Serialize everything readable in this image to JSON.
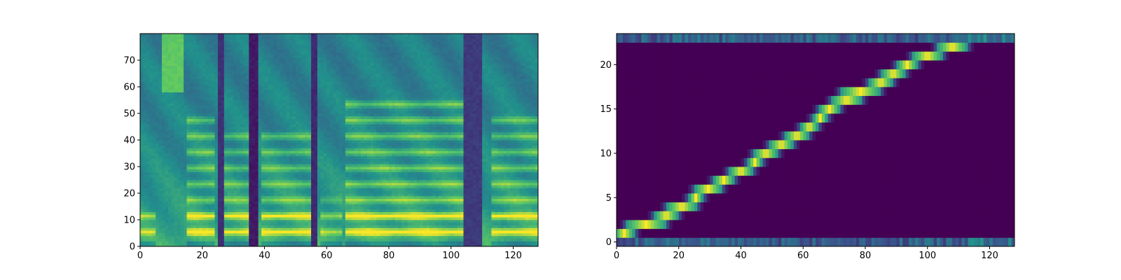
{
  "colormap": [
    "#440154",
    "#3b528b",
    "#21918c",
    "#5ec962",
    "#fde725"
  ],
  "chart_data": [
    {
      "type": "heatmap",
      "title": "",
      "xlabel": "",
      "ylabel": "",
      "xlim": [
        0,
        128
      ],
      "ylim": [
        0,
        80
      ],
      "grid": false,
      "xticks": [
        0,
        20,
        40,
        60,
        80,
        100,
        120
      ],
      "yticks": [
        0,
        10,
        20,
        30,
        40,
        50,
        60,
        70
      ],
      "n_rows": 80,
      "n_cols": 128,
      "bands": [
        5,
        11,
        17,
        23,
        29,
        35,
        41,
        47,
        53
      ],
      "voiced_segments": [
        {
          "start": 0,
          "end": 5,
          "strength": 0.55,
          "bands": 2
        },
        {
          "start": 15,
          "end": 24,
          "strength": 0.95,
          "bands": 8
        },
        {
          "start": 27,
          "end": 35,
          "strength": 0.85,
          "bands": 7
        },
        {
          "start": 39,
          "end": 57,
          "strength": 0.9,
          "bands": 7
        },
        {
          "start": 58,
          "end": 65,
          "strength": 0.55,
          "bands": 3
        },
        {
          "start": 66,
          "end": 105,
          "strength": 1.0,
          "bands": 9
        },
        {
          "start": 113,
          "end": 128,
          "strength": 0.95,
          "bands": 8
        }
      ],
      "dark_columns": [
        {
          "start": 25,
          "end": 27,
          "level": 0.12
        },
        {
          "start": 35,
          "end": 38,
          "level": 0.05
        },
        {
          "start": 55,
          "end": 57,
          "level": 0.1
        },
        {
          "start": 104,
          "end": 110,
          "level": 0.15
        }
      ],
      "bright_patch": {
        "x": [
          7,
          14
        ],
        "y": [
          58,
          80
        ],
        "level": 0.72
      }
    },
    {
      "type": "heatmap",
      "title": "",
      "xlabel": "",
      "ylabel": "",
      "xlim": [
        0,
        128
      ],
      "ylim": [
        -0.5,
        23.5
      ],
      "grid": false,
      "xticks": [
        0,
        20,
        40,
        60,
        80,
        100,
        120
      ],
      "yticks": [
        0,
        5,
        10,
        15,
        20
      ],
      "n_rows": 24,
      "n_cols": 128,
      "alignment": [
        {
          "row": 1,
          "x": [
            0,
            5
          ]
        },
        {
          "row": 2,
          "x": [
            4,
            15
          ]
        },
        {
          "row": 3,
          "x": [
            13,
            19
          ]
        },
        {
          "row": 4,
          "x": [
            17,
            25
          ]
        },
        {
          "row": 5,
          "x": [
            24,
            27
          ]
        },
        {
          "row": 6,
          "x": [
            26,
            33
          ]
        },
        {
          "row": 7,
          "x": [
            32,
            37
          ]
        },
        {
          "row": 8,
          "x": [
            37,
            43
          ]
        },
        {
          "row": 9,
          "x": [
            43,
            46
          ]
        },
        {
          "row": 10,
          "x": [
            45,
            51
          ]
        },
        {
          "row": 11,
          "x": [
            50,
            56
          ]
        },
        {
          "row": 12,
          "x": [
            55,
            61
          ]
        },
        {
          "row": 13,
          "x": [
            60,
            64
          ]
        },
        {
          "row": 14,
          "x": [
            64,
            67
          ]
        },
        {
          "row": 15,
          "x": [
            66,
            71
          ]
        },
        {
          "row": 16,
          "x": [
            70,
            78
          ]
        },
        {
          "row": 17,
          "x": [
            73,
            84
          ]
        },
        {
          "row": 18,
          "x": [
            82,
            88
          ]
        },
        {
          "row": 19,
          "x": [
            86,
            92
          ]
        },
        {
          "row": 20,
          "x": [
            91,
            96
          ]
        },
        {
          "row": 21,
          "x": [
            96,
            104
          ]
        },
        {
          "row": 22,
          "x": [
            104,
            112
          ]
        }
      ],
      "edge_rows": [
        {
          "row": 0,
          "level": 0.3
        },
        {
          "row": 23,
          "level": 0.3
        }
      ]
    }
  ]
}
